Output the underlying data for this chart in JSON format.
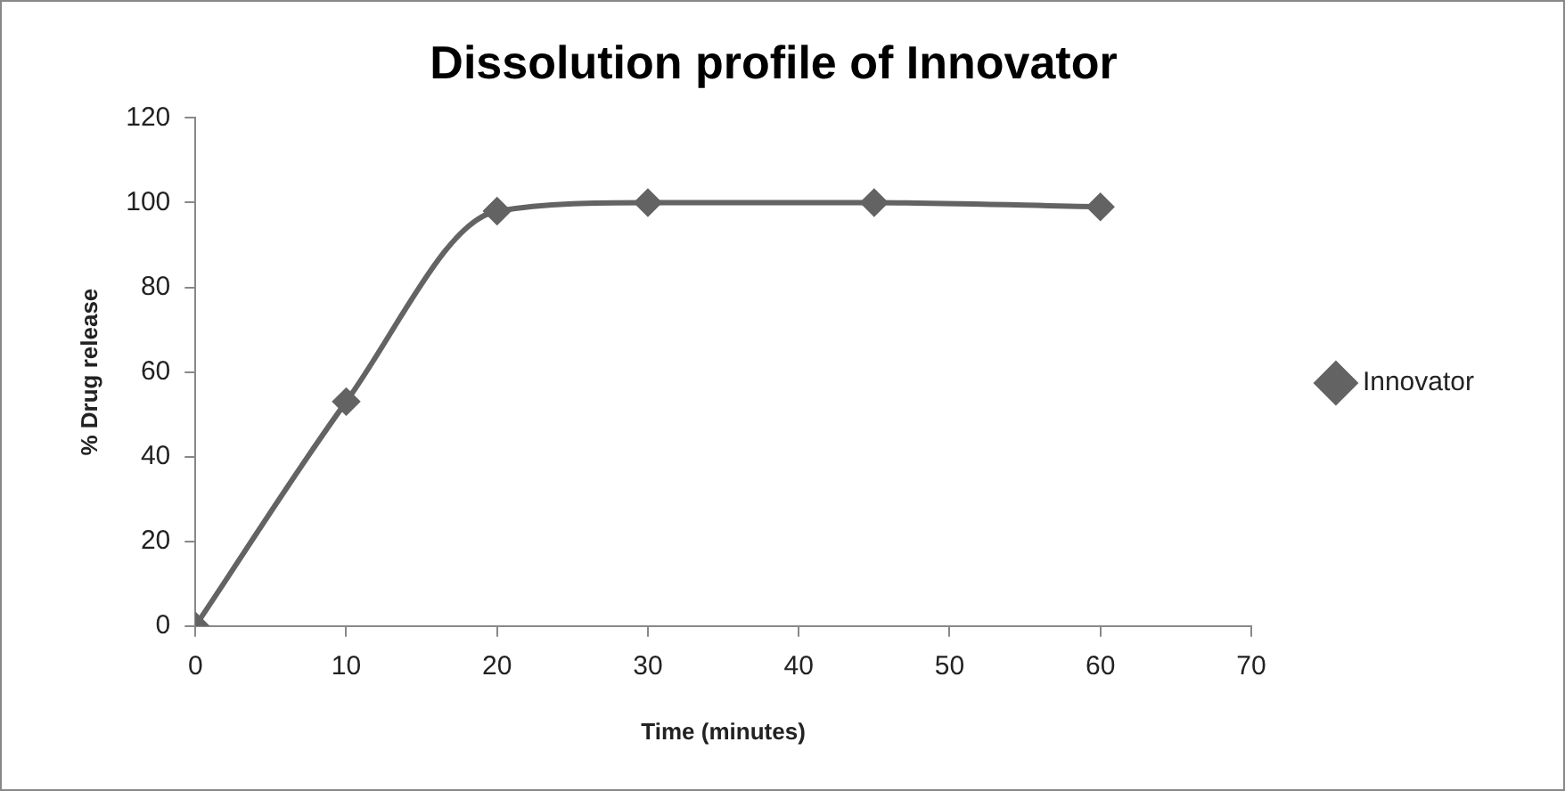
{
  "chart_data": {
    "type": "line",
    "title": "Dissolution profile of Innovator",
    "xlabel": "Time (minutes)",
    "ylabel": "% Drug release",
    "x": [
      0,
      10,
      20,
      30,
      45,
      60
    ],
    "series": [
      {
        "name": "Innovator",
        "color": "#636363",
        "values": [
          0,
          53,
          98,
          100,
          100,
          99
        ]
      }
    ],
    "xlim": [
      0,
      70
    ],
    "xticks": [
      0,
      10,
      20,
      30,
      40,
      50,
      60,
      70
    ],
    "ylim": [
      0,
      120
    ],
    "yticks": [
      0,
      20,
      40,
      60,
      80,
      100,
      120
    ],
    "grid": false,
    "legend": "right",
    "marker": "diamond",
    "line_style": "solid"
  }
}
